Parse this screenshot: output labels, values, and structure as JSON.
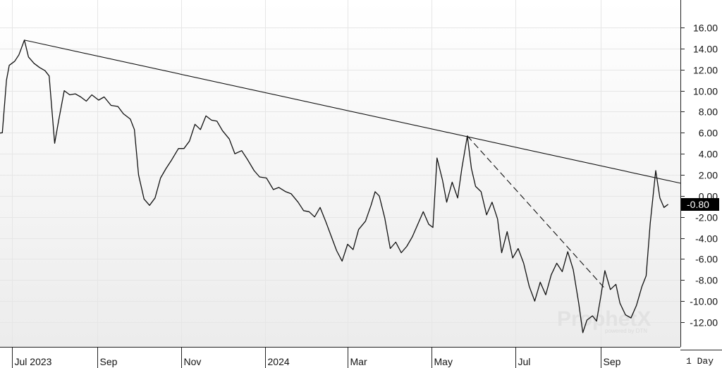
{
  "chart_data": {
    "type": "line",
    "series": [
      {
        "values_note": "",
        "points": [
          [
            "2023-06-01",
            6.2
          ],
          [
            "2023-06-06",
            6.0
          ],
          [
            "2023-06-12",
            5.9
          ],
          [
            "2023-06-18",
            5.9
          ],
          [
            "2023-06-24",
            6.0
          ],
          [
            "2023-06-27",
            11.0
          ],
          [
            "2023-06-29",
            12.4
          ],
          [
            "2023-07-03",
            12.8
          ],
          [
            "2023-07-06",
            13.4
          ],
          [
            "2023-07-10",
            14.8
          ],
          [
            "2023-07-13",
            13.2
          ],
          [
            "2023-07-17",
            12.6
          ],
          [
            "2023-07-21",
            12.2
          ],
          [
            "2023-07-25",
            11.9
          ],
          [
            "2023-07-28",
            11.4
          ],
          [
            "2023-08-01",
            5.0
          ],
          [
            "2023-08-04",
            7.2
          ],
          [
            "2023-08-08",
            10.0
          ],
          [
            "2023-08-12",
            9.6
          ],
          [
            "2023-08-16",
            9.7
          ],
          [
            "2023-08-20",
            9.4
          ],
          [
            "2023-08-24",
            9.0
          ],
          [
            "2023-08-28",
            9.6
          ],
          [
            "2023-09-02",
            9.1
          ],
          [
            "2023-09-06",
            9.4
          ],
          [
            "2023-09-11",
            8.6
          ],
          [
            "2023-09-16",
            8.5
          ],
          [
            "2023-09-20",
            7.8
          ],
          [
            "2023-09-25",
            7.3
          ],
          [
            "2023-09-28",
            6.3
          ],
          [
            "2023-10-01",
            2.0
          ],
          [
            "2023-10-05",
            -0.3
          ],
          [
            "2023-10-09",
            -0.9
          ],
          [
            "2023-10-13",
            -0.2
          ],
          [
            "2023-10-17",
            1.7
          ],
          [
            "2023-10-21",
            2.6
          ],
          [
            "2023-10-25",
            3.4
          ],
          [
            "2023-10-30",
            4.5
          ],
          [
            "2023-11-03",
            4.5
          ],
          [
            "2023-11-07",
            5.2
          ],
          [
            "2023-11-11",
            6.8
          ],
          [
            "2023-11-15",
            6.3
          ],
          [
            "2023-11-19",
            7.6
          ],
          [
            "2023-11-23",
            7.2
          ],
          [
            "2023-11-27",
            7.1
          ],
          [
            "2023-12-01",
            6.2
          ],
          [
            "2023-12-06",
            5.4
          ],
          [
            "2023-12-10",
            4.0
          ],
          [
            "2023-12-15",
            4.3
          ],
          [
            "2023-12-19",
            3.5
          ],
          [
            "2023-12-24",
            2.4
          ],
          [
            "2023-12-28",
            1.8
          ],
          [
            "2024-01-02",
            1.7
          ],
          [
            "2024-01-07",
            0.6
          ],
          [
            "2024-01-11",
            0.8
          ],
          [
            "2024-01-16",
            0.4
          ],
          [
            "2024-01-20",
            0.2
          ],
          [
            "2024-01-25",
            -0.6
          ],
          [
            "2024-01-29",
            -1.4
          ],
          [
            "2024-02-02",
            -1.5
          ],
          [
            "2024-02-06",
            -2.0
          ],
          [
            "2024-02-10",
            -1.1
          ],
          [
            "2024-02-14",
            -2.4
          ],
          [
            "2024-02-18",
            -3.8
          ],
          [
            "2024-02-22",
            -5.2
          ],
          [
            "2024-02-26",
            -6.2
          ],
          [
            "2024-03-01",
            -4.6
          ],
          [
            "2024-03-05",
            -5.1
          ],
          [
            "2024-03-09",
            -3.2
          ],
          [
            "2024-03-14",
            -2.4
          ],
          [
            "2024-03-18",
            -0.9
          ],
          [
            "2024-03-21",
            0.4
          ],
          [
            "2024-03-24",
            0.0
          ],
          [
            "2024-03-28",
            -2.1
          ],
          [
            "2024-04-01",
            -5.0
          ],
          [
            "2024-04-05",
            -4.4
          ],
          [
            "2024-04-09",
            -5.4
          ],
          [
            "2024-04-13",
            -4.8
          ],
          [
            "2024-04-17",
            -3.9
          ],
          [
            "2024-04-21",
            -2.7
          ],
          [
            "2024-04-25",
            -1.5
          ],
          [
            "2024-04-29",
            -2.7
          ],
          [
            "2024-05-02",
            -3.0
          ],
          [
            "2024-05-05",
            3.6
          ],
          [
            "2024-05-09",
            1.5
          ],
          [
            "2024-05-12",
            -0.6
          ],
          [
            "2024-05-16",
            1.3
          ],
          [
            "2024-05-20",
            -0.2
          ],
          [
            "2024-05-23",
            2.6
          ],
          [
            "2024-05-27",
            5.7
          ],
          [
            "2024-05-30",
            2.6
          ],
          [
            "2024-06-02",
            0.9
          ],
          [
            "2024-06-06",
            0.4
          ],
          [
            "2024-06-10",
            -1.8
          ],
          [
            "2024-06-14",
            -0.6
          ],
          [
            "2024-06-18",
            -2.2
          ],
          [
            "2024-06-21",
            -5.4
          ],
          [
            "2024-06-25",
            -3.4
          ],
          [
            "2024-06-29",
            -5.9
          ],
          [
            "2024-07-03",
            -5.0
          ],
          [
            "2024-07-07",
            -6.4
          ],
          [
            "2024-07-11",
            -8.6
          ],
          [
            "2024-07-15",
            -10.0
          ],
          [
            "2024-07-19",
            -8.2
          ],
          [
            "2024-07-23",
            -9.4
          ],
          [
            "2024-07-27",
            -7.5
          ],
          [
            "2024-07-31",
            -6.4
          ],
          [
            "2024-08-04",
            -7.2
          ],
          [
            "2024-08-08",
            -5.3
          ],
          [
            "2024-08-12",
            -7.0
          ],
          [
            "2024-08-16",
            -10.2
          ],
          [
            "2024-08-19",
            -13.0
          ],
          [
            "2024-08-22",
            -11.8
          ],
          [
            "2024-08-26",
            -11.4
          ],
          [
            "2024-08-29",
            -11.9
          ],
          [
            "2024-09-01",
            -9.6
          ],
          [
            "2024-09-04",
            -7.1
          ],
          [
            "2024-09-08",
            -8.9
          ],
          [
            "2024-09-12",
            -8.4
          ],
          [
            "2024-09-15",
            -10.2
          ],
          [
            "2024-09-19",
            -11.3
          ],
          [
            "2024-09-23",
            -11.6
          ],
          [
            "2024-09-27",
            -10.4
          ],
          [
            "2024-10-01",
            -8.6
          ],
          [
            "2024-10-04",
            -7.6
          ],
          [
            "2024-10-07",
            -2.6
          ],
          [
            "2024-10-11",
            2.4
          ],
          [
            "2024-10-14",
            -0.2
          ],
          [
            "2024-10-17",
            -1.1
          ],
          [
            "2024-10-20",
            -0.8
          ]
        ]
      }
    ],
    "trendlines": [
      {
        "style": "solid",
        "from": [
          "2023-07-10",
          14.8
        ],
        "to": [
          "2024-10-29",
          1.2
        ]
      },
      {
        "style": "dashed",
        "from": [
          "2024-05-27",
          5.7
        ],
        "to": [
          "2024-09-04",
          -8.8
        ]
      }
    ],
    "y_axis": {
      "position": "right",
      "ylim": [
        -14.0,
        18.0
      ],
      "tick_values": [
        16,
        14,
        12,
        10,
        8,
        6,
        4,
        2,
        0,
        -2,
        -4,
        -6,
        -8,
        -10,
        -12
      ],
      "tick_labels": [
        "16.00",
        "14.00",
        "12.00",
        "10.00",
        "8.00",
        "6.00",
        "4.00",
        "2.00",
        "0.00",
        "-2.00",
        "-4.00",
        "-6.00",
        "-8.00",
        "-10.00",
        "-12.00"
      ]
    },
    "x_axis": {
      "xlim": [
        "2023-06-01",
        "2024-10-29"
      ],
      "ticks": [
        {
          "date": "2023-07-01",
          "label": "Jul 2023"
        },
        {
          "date": "2023-09-01",
          "label": "Sep"
        },
        {
          "date": "2023-11-01",
          "label": "Nov"
        },
        {
          "date": "2024-01-01",
          "label": "2024"
        },
        {
          "date": "2024-03-01",
          "label": "Mar"
        },
        {
          "date": "2024-05-01",
          "label": "May"
        },
        {
          "date": "2024-07-01",
          "label": "Jul"
        },
        {
          "date": "2024-09-01",
          "label": "Sep"
        }
      ]
    },
    "last_value_label": "-0.80",
    "interval_label": "1 Day",
    "grid": true,
    "watermark": {
      "text": "ProphetX",
      "subtext": "powered by DTN"
    },
    "colors": {
      "line": "#111111",
      "grid": "#e6e6e6",
      "background_top": "#ffffff",
      "background_bottom": "#ececec",
      "last_label_bg": "#000000"
    }
  }
}
